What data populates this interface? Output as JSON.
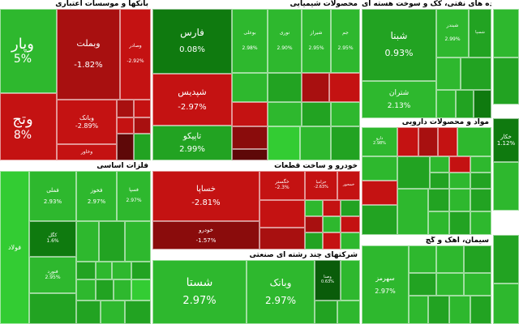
{
  "sectors": {
    "banks": {
      "title": "بانکها و موسسات اعتباری"
    },
    "chemicals": {
      "title": "محصولات شیمیایی"
    },
    "oil": {
      "title": "فرآورده های نفتی، کک و سوخت هسته ای"
    },
    "basic_metals": {
      "title": "فلزات اساسی"
    },
    "auto": {
      "title": "خودرو و ساخت قطعات"
    },
    "pharma": {
      "title": "مواد و محصولات دارویی"
    },
    "multi": {
      "title": "شرکتهای چند رشته ای صنعتی"
    },
    "cement": {
      "title": "سیمان، آهک و گچ"
    }
  },
  "tiles": {
    "vpars": {
      "sym": "وپار",
      "pct": "5%"
    },
    "vtejarat": {
      "sym": "وتج",
      "pct": "8%"
    },
    "vbmellat": {
      "sym": "وبملت",
      "pct": "-1.82%"
    },
    "vsader": {
      "sym": "وصادر",
      "pct": "-2.92%"
    },
    "vbank_b1": {
      "sym": "وبانک",
      "pct": "-2.89%"
    },
    "vkhavar": {
      "sym": "وخاور",
      "pct": ""
    },
    "fars": {
      "sym": "فارس",
      "pct": "0.08%"
    },
    "shpadis": {
      "sym": "شپدیس",
      "pct": "-2.97%"
    },
    "tapiko": {
      "sym": "تاپیکو",
      "pct": "2.99%"
    },
    "boali": {
      "sym": "بوعلی",
      "pct": "2.98%"
    },
    "nori": {
      "sym": "نوری",
      "pct": "2.90%"
    },
    "shiraz": {
      "sym": "شیراز",
      "pct": "2.95%"
    },
    "jam": {
      "sym": "جم",
      "pct": "2.95%"
    },
    "shabna": {
      "sym": "شبنا",
      "pct": "0.93%"
    },
    "shbandar": {
      "sym": "شبندر",
      "pct": "2.99%"
    },
    "shtran": {
      "sym": "شتران",
      "pct": "2.13%"
    },
    "shesfahan": {
      "sym": "شسپا",
      "pct": ""
    },
    "foolad": {
      "sym": "فولاد",
      "pct": ""
    },
    "fameli": {
      "sym": "فملی",
      "pct": "2.93%"
    },
    "fkhouz": {
      "sym": "فخوز",
      "pct": "2.97%"
    },
    "fsepahan": {
      "sym": "فسپا",
      "pct": "2.97%"
    },
    "kgol": {
      "sym": "کگل",
      "pct": "1.6%"
    },
    "fnvard": {
      "sym": "فنورد",
      "pct": "2.95%"
    },
    "khasapa": {
      "sym": "خساپا",
      "pct": "-2.81%"
    },
    "khodro": {
      "sym": "خودرو",
      "pct": "-1.57%"
    },
    "khgostar": {
      "sym": "خگستر",
      "pct": "-2.3%"
    },
    "khazamia": {
      "sym": "خزامیا",
      "pct": "-2.63%"
    },
    "khmehvar": {
      "sym": "خمحور",
      "pct": ""
    },
    "shasta": {
      "sym": "شستا",
      "pct": "2.97%"
    },
    "vbank": {
      "sym": "وبانک",
      "pct": "2.97%"
    },
    "vsakht": {
      "sym": "وصنا",
      "pct": "0.63%"
    },
    "sahrz": {
      "sym": "سهرمز",
      "pct": "2.97%"
    },
    "vadarou": {
      "sym": "دارو",
      "pct": "2.98%"
    },
    "ghazal": {
      "sym": "خکار",
      "pct": "1.12%"
    }
  }
}
